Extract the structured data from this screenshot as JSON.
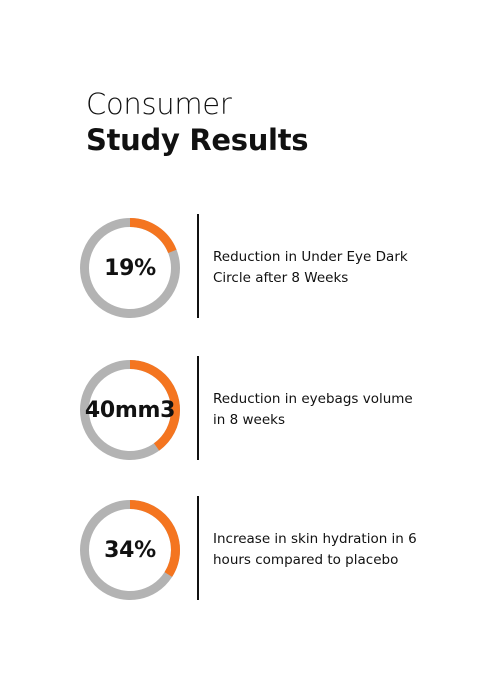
{
  "heading": {
    "line1": "Consumer",
    "line2": "Study Results"
  },
  "colors": {
    "accent": "#f47520",
    "ring_track": "#b3b3b3",
    "text": "#111111",
    "background": "#ffffff"
  },
  "stats": [
    {
      "value": "19%",
      "description": "Reduction in Under Eye Dark Circle after 8 Weeks",
      "ring_fill_fraction": 0.19
    },
    {
      "value": "40mm3",
      "description": "Reduction in eyebags volume in 8 weeks",
      "ring_fill_fraction": 0.4
    },
    {
      "value": "34%",
      "description": "Increase in skin hydration in 6 hours compared to placebo",
      "ring_fill_fraction": 0.34
    }
  ]
}
